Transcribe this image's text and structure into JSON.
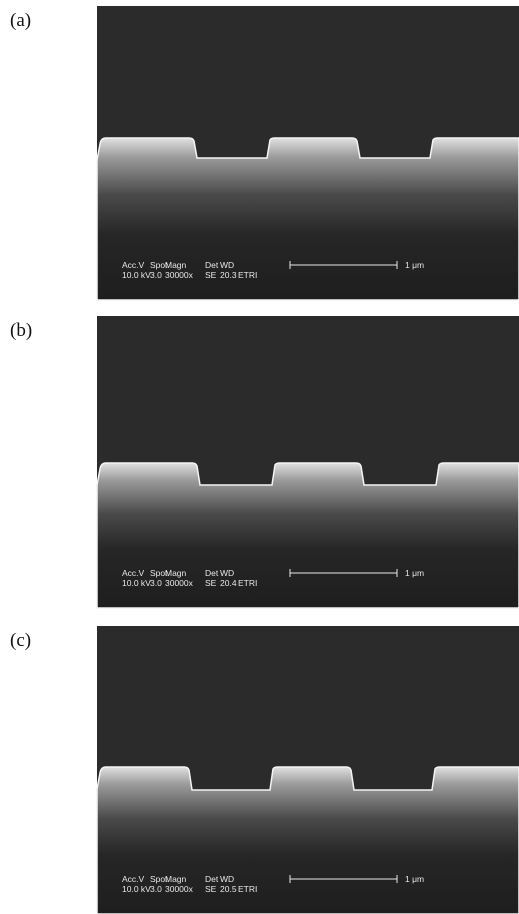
{
  "panels": [
    {
      "label": "(a)",
      "info": {
        "headers": [
          "Acc.V",
          "Spot",
          "Magn",
          "Det",
          "WD"
        ],
        "values": [
          "10.0 kV",
          "3.0",
          "30000x",
          "SE",
          "20.3",
          "ETRI"
        ]
      },
      "scale_bar": "1 μm"
    },
    {
      "label": "(b)",
      "info": {
        "headers": [
          "Acc.V",
          "Spot",
          "Magn",
          "Det",
          "WD"
        ],
        "values": [
          "10.0 kV",
          "3.0",
          "30000x",
          "SE",
          "20.4",
          "ETRI"
        ]
      },
      "scale_bar": "1 μm"
    },
    {
      "label": "(c)",
      "info": {
        "headers": [
          "Acc.V",
          "Spot",
          "Magn",
          "Det",
          "WD"
        ],
        "values": [
          "10.0 kV",
          "3.0",
          "30000x",
          "SE",
          "20.5",
          "ETRI"
        ]
      },
      "scale_bar": "1 μm"
    }
  ]
}
